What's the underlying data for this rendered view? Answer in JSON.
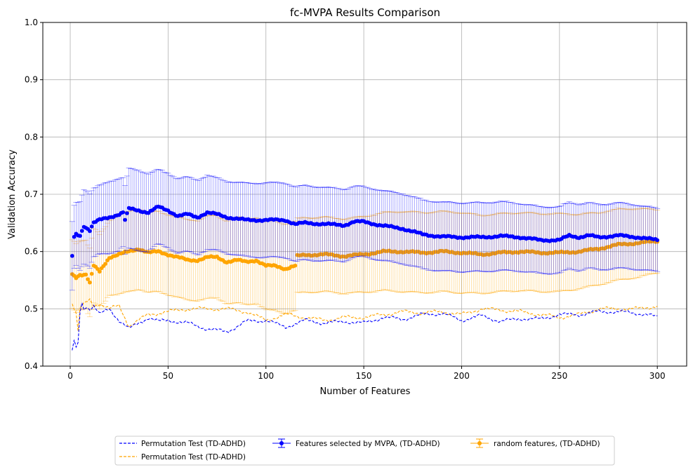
{
  "chart_data": {
    "type": "line",
    "title": "fc-MVPA Results Comparison",
    "xlabel": "Number of Features",
    "ylabel": "Validation Accuracy",
    "xlim": [
      -14,
      315
    ],
    "ylim": [
      0.4,
      1.0
    ],
    "x_ticks": [
      0,
      50,
      100,
      150,
      200,
      250,
      300
    ],
    "y_ticks": [
      0.4,
      0.5,
      0.6,
      0.7,
      0.8,
      0.9,
      1.0
    ],
    "grid": true,
    "legend": {
      "placement": "bottom-center, outside plot",
      "columns": 3
    },
    "x_range": [
      1,
      300
    ],
    "series": [
      {
        "name": "Permutation Test (TD-ADHD)",
        "style": "dashed",
        "color": "#0000ff",
        "x": [
          1,
          2,
          3,
          4,
          5,
          6,
          7,
          8,
          10,
          12,
          15,
          20,
          25,
          30,
          35,
          40,
          45,
          50,
          60,
          70,
          80,
          90,
          100,
          110,
          120,
          130,
          140,
          150,
          160,
          170,
          180,
          190,
          200,
          210,
          220,
          230,
          240,
          250,
          260,
          270,
          280,
          290,
          295,
          300
        ],
        "y": [
          0.425,
          0.445,
          0.43,
          0.44,
          0.495,
          0.51,
          0.5,
          0.505,
          0.5,
          0.505,
          0.49,
          0.5,
          0.48,
          0.465,
          0.475,
          0.485,
          0.478,
          0.48,
          0.475,
          0.465,
          0.46,
          0.478,
          0.48,
          0.468,
          0.48,
          0.475,
          0.478,
          0.475,
          0.485,
          0.482,
          0.49,
          0.492,
          0.48,
          0.488,
          0.478,
          0.483,
          0.482,
          0.49,
          0.49,
          0.495,
          0.495,
          0.492,
          0.49,
          0.485
        ]
      },
      {
        "name": "Permutation Test (TD-ADHD)",
        "style": "dashed",
        "color": "#ffa500",
        "x": [
          1,
          2,
          3,
          4,
          5,
          6,
          8,
          10,
          12,
          15,
          20,
          25,
          30,
          35,
          40,
          50,
          60,
          70,
          80,
          90,
          100,
          110,
          120,
          130,
          140,
          150,
          160,
          170,
          180,
          190,
          200,
          210,
          220,
          230,
          240,
          250,
          260,
          270,
          280,
          290,
          300
        ],
        "y": [
          0.51,
          0.5,
          0.495,
          0.46,
          0.5,
          0.505,
          0.51,
          0.515,
          0.505,
          0.51,
          0.5,
          0.505,
          0.47,
          0.48,
          0.49,
          0.495,
          0.5,
          0.5,
          0.5,
          0.495,
          0.48,
          0.49,
          0.485,
          0.48,
          0.485,
          0.485,
          0.49,
          0.495,
          0.493,
          0.495,
          0.49,
          0.5,
          0.498,
          0.495,
          0.49,
          0.485,
          0.49,
          0.5,
          0.5,
          0.5,
          0.505
        ]
      },
      {
        "name": "Features selected by MVPA, (TD-ADHD)",
        "style": "errorbar-markers",
        "color": "#0000ff",
        "x": [
          1,
          2,
          3,
          5,
          7,
          10,
          12,
          15,
          20,
          25,
          27,
          28,
          30,
          35,
          40,
          45,
          50,
          55,
          60,
          65,
          70,
          75,
          80,
          90,
          100,
          110,
          115,
          120,
          130,
          140,
          145,
          150,
          160,
          170,
          180,
          190,
          200,
          210,
          220,
          230,
          240,
          250,
          255,
          260,
          265,
          270,
          280,
          290,
          300
        ],
        "y": [
          0.592,
          0.625,
          0.63,
          0.628,
          0.645,
          0.637,
          0.65,
          0.655,
          0.66,
          0.665,
          0.668,
          0.655,
          0.675,
          0.672,
          0.668,
          0.678,
          0.672,
          0.662,
          0.665,
          0.66,
          0.668,
          0.665,
          0.66,
          0.655,
          0.655,
          0.655,
          0.648,
          0.65,
          0.648,
          0.646,
          0.652,
          0.652,
          0.645,
          0.64,
          0.63,
          0.626,
          0.625,
          0.625,
          0.627,
          0.625,
          0.62,
          0.62,
          0.628,
          0.625,
          0.628,
          0.625,
          0.628,
          0.625,
          0.62
        ],
        "err": [
          0.06,
          0.055,
          0.055,
          0.06,
          0.065,
          0.065,
          0.06,
          0.06,
          0.063,
          0.063,
          0.06,
          0.06,
          0.07,
          0.07,
          0.068,
          0.065,
          0.065,
          0.065,
          0.065,
          0.065,
          0.065,
          0.063,
          0.063,
          0.064,
          0.065,
          0.065,
          0.065,
          0.065,
          0.064,
          0.063,
          0.062,
          0.061,
          0.061,
          0.061,
          0.06,
          0.06,
          0.06,
          0.06,
          0.06,
          0.059,
          0.058,
          0.058,
          0.058,
          0.058,
          0.057,
          0.057,
          0.057,
          0.056,
          0.055
        ]
      },
      {
        "name": "random features, (TD-ADHD)",
        "style": "errorbar-markers",
        "color": "#ffa500",
        "x": [
          1,
          3,
          5,
          8,
          10,
          12,
          15,
          20,
          25,
          30,
          35,
          40,
          45,
          50,
          55,
          60,
          65,
          70,
          75,
          80,
          85,
          90,
          95,
          100,
          105,
          110,
          115,
          116,
          120,
          130,
          140,
          150,
          160,
          170,
          180,
          190,
          200,
          210,
          220,
          230,
          240,
          250,
          260,
          270,
          280,
          290,
          300
        ],
        "y": [
          0.56,
          0.555,
          0.56,
          0.56,
          0.545,
          0.575,
          0.565,
          0.59,
          0.595,
          0.6,
          0.605,
          0.598,
          0.6,
          0.595,
          0.59,
          0.585,
          0.585,
          0.59,
          0.59,
          0.582,
          0.585,
          0.582,
          0.585,
          0.575,
          0.575,
          0.57,
          0.575,
          0.592,
          0.594,
          0.595,
          0.592,
          0.595,
          0.6,
          0.6,
          0.598,
          0.6,
          0.598,
          0.595,
          0.598,
          0.6,
          0.598,
          0.598,
          0.6,
          0.605,
          0.612,
          0.615,
          0.618
        ],
        "err": [
          0.06,
          0.06,
          0.06,
          0.06,
          0.06,
          0.065,
          0.065,
          0.065,
          0.07,
          0.07,
          0.07,
          0.07,
          0.07,
          0.07,
          0.07,
          0.07,
          0.07,
          0.072,
          0.072,
          0.072,
          0.075,
          0.075,
          0.075,
          0.077,
          0.078,
          0.078,
          0.078,
          0.065,
          0.065,
          0.065,
          0.065,
          0.066,
          0.068,
          0.07,
          0.07,
          0.07,
          0.07,
          0.068,
          0.068,
          0.068,
          0.068,
          0.068,
          0.065,
          0.063,
          0.062,
          0.06,
          0.055
        ]
      }
    ]
  }
}
